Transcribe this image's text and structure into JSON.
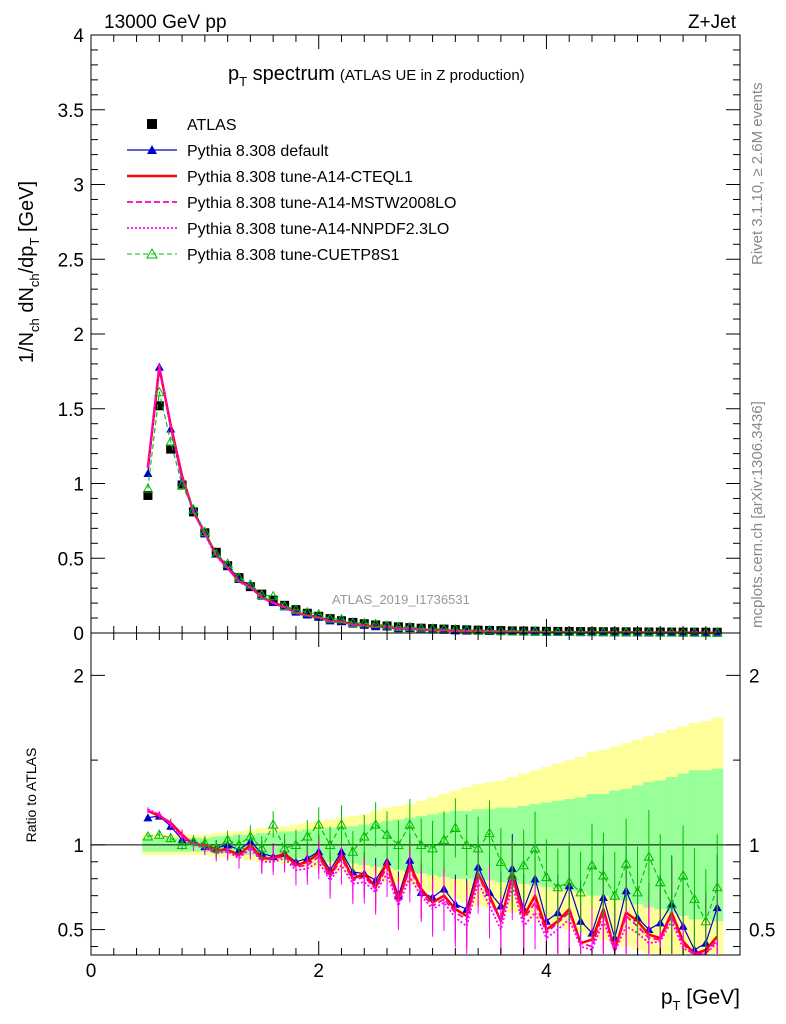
{
  "header": {
    "left": "13000 GeV pp",
    "right": "Z+Jet",
    "side_top": "Rivet 3.1.10, ≥ 2.6M events",
    "side_bottom": "mcplots.cern.ch [arXiv:1306.3436]",
    "analysis_id": "ATLAS_2019_I1736531"
  },
  "chart_data": {
    "type": "line",
    "title": {
      "main": "p",
      "main_sub": "T",
      "main_rest": " spectrum",
      "aside": "(ATLAS UE in Z production)"
    },
    "ylabel": {
      "a": "1/N",
      "a_sub": "ch",
      "b": " dN",
      "b_sub": "ch",
      "c": "/dp",
      "c_sub": "T",
      "d": " [GeV]"
    },
    "xlabel": {
      "a": "p",
      "a_sub": "T",
      "b": " [GeV]"
    },
    "ratio_ylabel": "Ratio to ATLAS",
    "xlim": [
      0,
      5.7
    ],
    "ylim": [
      0,
      4
    ],
    "ratio_ylim": [
      0.35,
      2.25
    ],
    "x_ticks": [
      "0",
      "2",
      "4"
    ],
    "y_ticks": [
      "0",
      "0.5",
      "1",
      "1.5",
      "2",
      "2.5",
      "3",
      "3.5",
      "4"
    ],
    "ratio_ticks": [
      "0.5",
      "1",
      "2"
    ],
    "grid": false,
    "legend_position": "top-left",
    "x": [
      0.5,
      0.6,
      0.7,
      0.8,
      0.9,
      1.0,
      1.1,
      1.2,
      1.3,
      1.4,
      1.5,
      1.6,
      1.7,
      1.8,
      1.9,
      2.0,
      2.1,
      2.2,
      2.3,
      2.4,
      2.5,
      2.6,
      2.7,
      2.8,
      2.9,
      3.0,
      3.1,
      3.2,
      3.3,
      3.4,
      3.5,
      3.6,
      3.7,
      3.8,
      3.9,
      4.0,
      4.1,
      4.2,
      4.3,
      4.4,
      4.5,
      4.6,
      4.7,
      4.8,
      4.9,
      5.0,
      5.1,
      5.2,
      5.3,
      5.4,
      5.5
    ],
    "data": {
      "name": "ATLAS",
      "values": [
        0.92,
        1.52,
        1.23,
        0.99,
        0.81,
        0.67,
        0.54,
        0.45,
        0.37,
        0.31,
        0.26,
        0.22,
        0.185,
        0.156,
        0.132,
        0.112,
        0.096,
        0.082,
        0.071,
        0.062,
        0.054,
        0.047,
        0.041,
        0.036,
        0.032,
        0.029,
        0.026,
        0.023,
        0.021,
        0.019,
        0.017,
        0.016,
        0.014,
        0.013,
        0.012,
        0.011,
        0.0105,
        0.0098,
        0.0092,
        0.0088,
        0.0084,
        0.008,
        0.0076,
        0.0072,
        0.0068,
        0.0065,
        0.0062,
        0.0059,
        0.0056,
        0.0053,
        0.005
      ],
      "band_inner": [
        0.04,
        0.04,
        0.04,
        0.04,
        0.04,
        0.04,
        0.05,
        0.05,
        0.06,
        0.06,
        0.07,
        0.07,
        0.08,
        0.08,
        0.09,
        0.09,
        0.1,
        0.1,
        0.11,
        0.12,
        0.13,
        0.14,
        0.15,
        0.16,
        0.17,
        0.18,
        0.19,
        0.2,
        0.2,
        0.21,
        0.21,
        0.22,
        0.22,
        0.23,
        0.24,
        0.25,
        0.26,
        0.27,
        0.28,
        0.3,
        0.3,
        0.32,
        0.33,
        0.35,
        0.37,
        0.38,
        0.4,
        0.42,
        0.44,
        0.44,
        0.45
      ],
      "band_outer": [
        0.06,
        0.06,
        0.06,
        0.06,
        0.06,
        0.06,
        0.07,
        0.07,
        0.08,
        0.09,
        0.1,
        0.1,
        0.11,
        0.12,
        0.13,
        0.14,
        0.15,
        0.16,
        0.17,
        0.18,
        0.2,
        0.22,
        0.23,
        0.24,
        0.26,
        0.28,
        0.3,
        0.32,
        0.34,
        0.36,
        0.37,
        0.38,
        0.4,
        0.42,
        0.44,
        0.46,
        0.48,
        0.5,
        0.52,
        0.55,
        0.56,
        0.58,
        0.6,
        0.62,
        0.64,
        0.66,
        0.68,
        0.7,
        0.72,
        0.73,
        0.75
      ]
    },
    "series": [
      {
        "name": "Pythia 8.308 default",
        "color": "#0000cc",
        "marker": "triangle",
        "dash": "none",
        "width": 1.2,
        "ratio": [
          1.16,
          1.17,
          1.11,
          1.03,
          1.02,
          0.99,
          0.98,
          1.0,
          0.97,
          1.02,
          0.95,
          0.93,
          0.95,
          0.9,
          0.92,
          0.96,
          0.85,
          0.96,
          0.84,
          0.83,
          0.79,
          0.9,
          0.7,
          0.91,
          0.72,
          0.69,
          0.74,
          0.65,
          0.62,
          0.87,
          0.72,
          0.64,
          0.86,
          0.62,
          0.8,
          0.55,
          0.6,
          0.76,
          0.55,
          0.48,
          0.69,
          0.45,
          0.73,
          0.57,
          0.5,
          0.54,
          0.65,
          0.52,
          0.38,
          0.42,
          0.63
        ]
      },
      {
        "name": "Pythia 8.308 tune-A14-CTEQL1",
        "color": "#ff0000",
        "marker": "none",
        "dash": "none",
        "width": 2.5,
        "ratio": [
          1.2,
          1.17,
          1.13,
          1.06,
          1.0,
          1.0,
          0.97,
          0.97,
          0.94,
          1.0,
          0.92,
          0.92,
          0.95,
          0.88,
          0.9,
          0.95,
          0.82,
          0.94,
          0.8,
          0.83,
          0.75,
          0.9,
          0.67,
          0.88,
          0.74,
          0.66,
          0.7,
          0.62,
          0.58,
          0.83,
          0.7,
          0.55,
          0.82,
          0.58,
          0.7,
          0.5,
          0.55,
          0.62,
          0.42,
          0.44,
          0.62,
          0.38,
          0.6,
          0.55,
          0.47,
          0.45,
          0.6,
          0.43,
          0.35,
          0.38,
          0.46
        ]
      },
      {
        "name": "Pythia 8.308 tune-A14-MSTW2008LO",
        "color": "#ff00aa",
        "marker": "none",
        "dash": "6,3",
        "width": 1.8,
        "ratio": [
          1.2,
          1.18,
          1.12,
          1.05,
          1.01,
          0.99,
          0.96,
          0.97,
          0.93,
          0.99,
          0.91,
          0.92,
          0.93,
          0.87,
          0.88,
          0.93,
          0.81,
          0.92,
          0.79,
          0.81,
          0.74,
          0.87,
          0.66,
          0.86,
          0.72,
          0.64,
          0.68,
          0.6,
          0.56,
          0.82,
          0.68,
          0.55,
          0.8,
          0.56,
          0.66,
          0.48,
          0.54,
          0.6,
          0.42,
          0.4,
          0.6,
          0.38,
          0.58,
          0.52,
          0.45,
          0.44,
          0.58,
          0.41,
          0.35,
          0.36,
          0.44
        ]
      },
      {
        "name": "Pythia 8.308 tune-A14-NNPDF2.3LO",
        "color": "#ff00ff",
        "marker": "none",
        "dash": "2,2",
        "width": 1.8,
        "ratio": [
          1.21,
          1.18,
          1.12,
          1.04,
          1.0,
          0.98,
          0.95,
          0.96,
          0.92,
          0.98,
          0.9,
          0.9,
          0.92,
          0.85,
          0.86,
          0.9,
          0.79,
          0.88,
          0.77,
          0.78,
          0.72,
          0.83,
          0.64,
          0.81,
          0.7,
          0.62,
          0.66,
          0.57,
          0.52,
          0.78,
          0.64,
          0.5,
          0.76,
          0.52,
          0.6,
          0.45,
          0.5,
          0.56,
          0.4,
          0.38,
          0.55,
          0.37,
          0.52,
          0.48,
          0.42,
          0.43,
          0.55,
          0.39,
          0.35,
          0.36,
          0.42
        ]
      },
      {
        "name": "Pythia 8.308 tune-CUETP8S1",
        "color": "#00bb00",
        "marker": "open-triangle",
        "dash": "5,3",
        "width": 1.1,
        "ratio": [
          1.05,
          1.06,
          1.04,
          1.0,
          1.02,
          1.01,
          0.98,
          1.03,
          1.0,
          1.05,
          0.98,
          1.12,
          0.98,
          1.0,
          1.05,
          1.12,
          1.0,
          1.12,
          0.96,
          1.05,
          1.12,
          1.06,
          1.0,
          1.12,
          1.0,
          0.98,
          1.03,
          1.1,
          1.0,
          0.98,
          1.07,
          0.9,
          0.82,
          0.88,
          0.98,
          0.81,
          0.75,
          0.78,
          0.72,
          0.88,
          0.82,
          0.7,
          0.89,
          0.72,
          0.93,
          0.78,
          0.65,
          0.82,
          0.68,
          0.55,
          0.75
        ]
      }
    ]
  }
}
